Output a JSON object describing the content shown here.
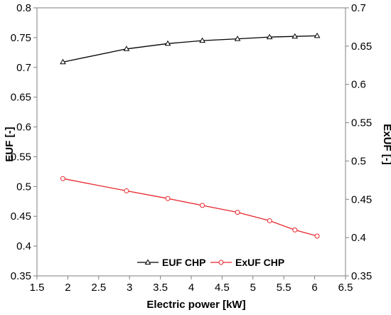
{
  "chart_data": {
    "type": "line",
    "xlabel": "Electric power [kW]",
    "ylabel_left": "EUF [-]",
    "ylabel_right": "ExUF [-]",
    "xlim": [
      1.5,
      6.5
    ],
    "ylim_left": [
      0.35,
      0.8
    ],
    "ylim_right": [
      0.35,
      0.7
    ],
    "x_ticks": [
      "1.5",
      "2",
      "2.5",
      "3",
      "3.5",
      "4",
      "4.5",
      "5",
      "5.5",
      "6",
      "6.5"
    ],
    "y_left_ticks": [
      "0.35",
      "0.4",
      "0.45",
      "0.5",
      "0.55",
      "0.6",
      "0.65",
      "0.7",
      "0.75",
      "0.8"
    ],
    "y_right_ticks": [
      "0.35",
      "0.4",
      "0.45",
      "0.5",
      "0.55",
      "0.6",
      "0.65",
      "0.7"
    ],
    "grid": false,
    "legend_position": "bottom-center",
    "series": [
      {
        "name": "EUF CHP",
        "axis": "left",
        "marker": "triangle",
        "color": "#000000",
        "x": [
          1.92,
          2.95,
          3.62,
          4.18,
          4.75,
          5.27,
          5.68,
          6.04
        ],
        "values": [
          0.709,
          0.731,
          0.74,
          0.745,
          0.748,
          0.751,
          0.752,
          0.753
        ]
      },
      {
        "name": "ExUF CHP",
        "axis": "right",
        "marker": "circle",
        "color": "#e8262c",
        "x": [
          1.92,
          2.95,
          3.62,
          4.18,
          4.75,
          5.27,
          5.68,
          6.04
        ],
        "values": [
          0.477,
          0.461,
          0.451,
          0.442,
          0.433,
          0.422,
          0.41,
          0.402
        ]
      }
    ]
  }
}
